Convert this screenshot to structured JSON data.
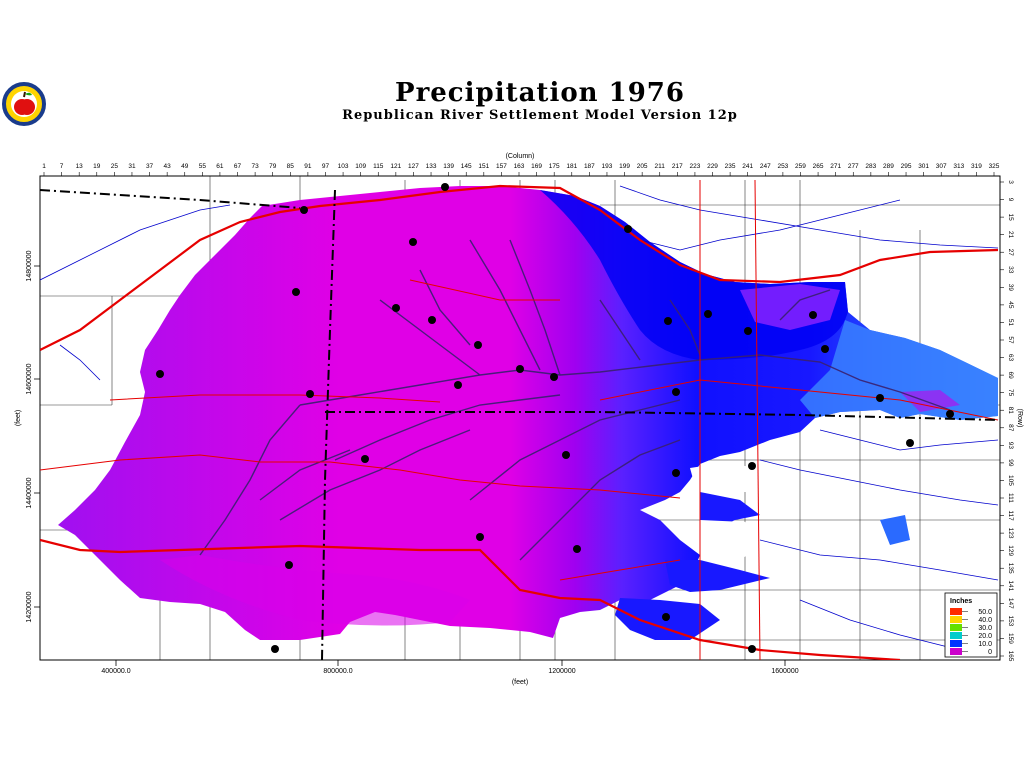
{
  "title": "Precipitation  1976",
  "subtitle": "Republican River Settlement Model Version 12p",
  "axes": {
    "column_label": "(Column)",
    "row_label": "(Row)",
    "x_label": "(feet)",
    "y_label": "(feet)",
    "column_ticks": [
      "1",
      "7",
      "13",
      "19",
      "25",
      "31",
      "37",
      "43",
      "49",
      "55",
      "61",
      "67",
      "73",
      "79",
      "85",
      "91",
      "97",
      "103",
      "109",
      "115",
      "121",
      "127",
      "133",
      "139",
      "145",
      "151",
      "157",
      "163",
      "169",
      "175",
      "181",
      "187",
      "193",
      "199",
      "205",
      "211",
      "217",
      "223",
      "229",
      "235",
      "241",
      "247",
      "253",
      "259",
      "265",
      "271",
      "277",
      "283",
      "289",
      "295",
      "301",
      "307",
      "313",
      "319",
      "325"
    ],
    "row_ticks": [
      "3",
      "9",
      "15",
      "21",
      "27",
      "33",
      "39",
      "45",
      "51",
      "57",
      "63",
      "69",
      "75",
      "81",
      "87",
      "93",
      "99",
      "105",
      "111",
      "117",
      "123",
      "129",
      "135",
      "141",
      "147",
      "153",
      "159",
      "165"
    ],
    "x_ticks": [
      "400000.0",
      "800000.0",
      "1200000",
      "1600000"
    ],
    "y_ticks": [
      "14800000",
      "14600000",
      "14400000",
      "14200000"
    ]
  },
  "legend": {
    "title": "Inches",
    "items": [
      {
        "label": "50.0",
        "color": "#ff2a00"
      },
      {
        "label": "40.0",
        "color": "#ffd400"
      },
      {
        "label": "30.0",
        "color": "#66e000"
      },
      {
        "label": "20.0",
        "color": "#00cccc"
      },
      {
        "label": "10.0",
        "color": "#0033ff"
      },
      {
        "label": "0",
        "color": "#cc00cc"
      }
    ]
  },
  "colors": {
    "magenta": "#e600e6",
    "violet": "#b000f0",
    "purple": "#7a1cff",
    "blue": "#1010ff",
    "lightblue": "#2a7aff",
    "road": "#e60000",
    "stream": "#0000cc"
  }
}
